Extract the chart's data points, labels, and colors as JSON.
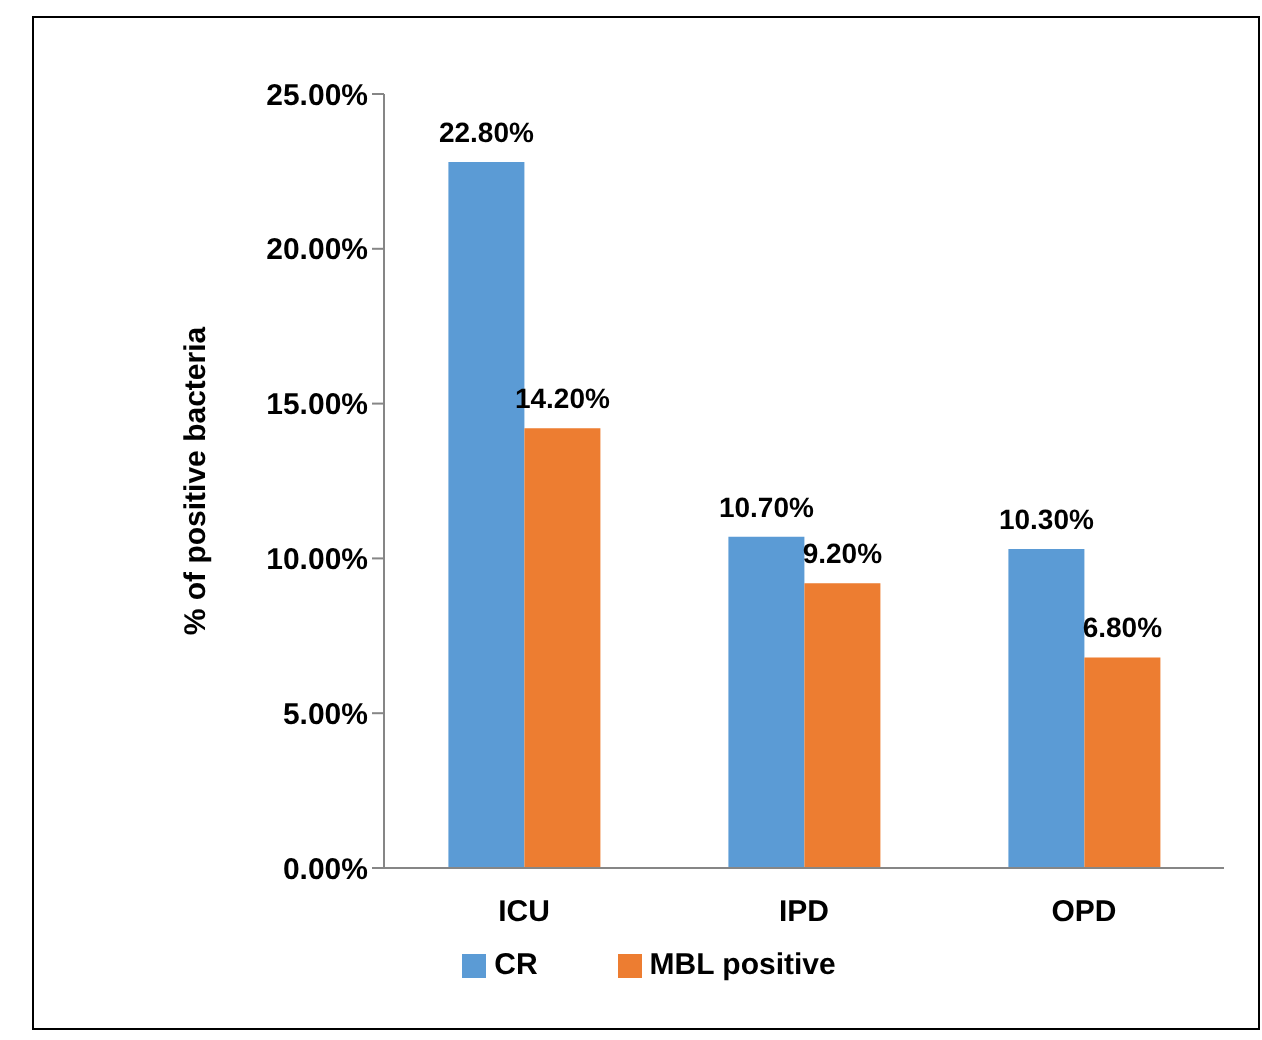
{
  "chart_data": {
    "type": "bar",
    "ylabel": "% of positive bacteria",
    "categories": [
      "ICU",
      "IPD",
      "OPD"
    ],
    "series": [
      {
        "name": "CR",
        "color": "#5b9bd5",
        "values": [
          22.8,
          10.7,
          10.3
        ],
        "value_labels": [
          "22.80%",
          "10.70%",
          "10.30%"
        ]
      },
      {
        "name": "MBL positive",
        "color": "#ed7d31",
        "values": [
          14.2,
          9.2,
          6.8
        ],
        "value_labels": [
          "14.20%",
          "9.20%",
          "6.80%"
        ]
      }
    ],
    "ylim": [
      0,
      25
    ],
    "yticks": [
      {
        "value": 0,
        "label": "0.00%"
      },
      {
        "value": 5,
        "label": "5.00%"
      },
      {
        "value": 10,
        "label": "10.00%"
      },
      {
        "value": 15,
        "label": "15.00%"
      },
      {
        "value": 20,
        "label": "20.00%"
      },
      {
        "value": 25,
        "label": "25.00%"
      }
    ],
    "grid": false,
    "legend": "bottom"
  }
}
